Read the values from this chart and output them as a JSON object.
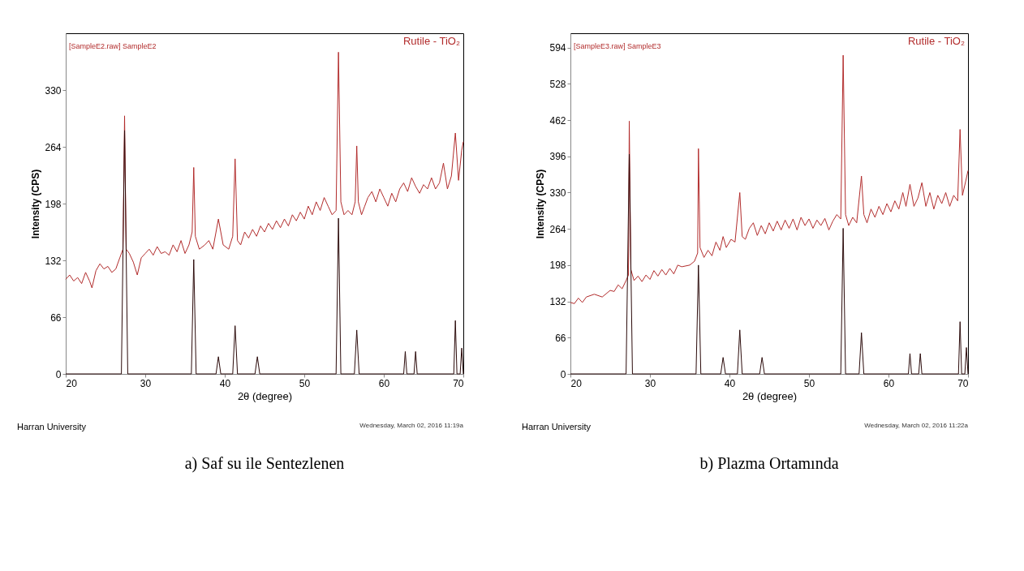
{
  "chart_data": [
    {
      "type": "line",
      "title": "a) Saf su ile Sentezlenen",
      "xlabel": "2θ (degree)",
      "ylabel": "Intensity (CPS)",
      "annotations": [
        "Rutile - TiO₂",
        "Harran University",
        "Wednesday, March 02, 2016 11:19a"
      ],
      "xlim": [
        20,
        70
      ],
      "xticks": [
        20,
        30,
        40,
        50,
        60,
        70
      ],
      "ylim": [
        0,
        396
      ],
      "yticks": [
        0,
        66,
        132,
        198,
        264,
        330
      ],
      "grid": false,
      "series": [
        {
          "name": "[SampleE2.raw] SampleE2",
          "color": "#b22c2c",
          "x": [
            20,
            20.5,
            21,
            21.5,
            22,
            22.5,
            23,
            23.3,
            23.8,
            24.3,
            24.8,
            25.3,
            25.8,
            26.3,
            26.8,
            27.2,
            27.4,
            27.6,
            28,
            28.5,
            29,
            29.5,
            30,
            30.5,
            31,
            31.5,
            32,
            32.5,
            33,
            33.5,
            34,
            34.5,
            35,
            35.5,
            35.9,
            36.1,
            36.3,
            36.8,
            37.5,
            38,
            38.5,
            39.2,
            39.8,
            40.5,
            41,
            41.3,
            41.6,
            42,
            42.5,
            43,
            43.5,
            44,
            44.5,
            45,
            45.5,
            46,
            46.5,
            47,
            47.5,
            48,
            48.5,
            49,
            49.5,
            50,
            50.5,
            51,
            51.5,
            52,
            52.5,
            53,
            53.5,
            54,
            54.3,
            54.6,
            55,
            55.5,
            56,
            56.4,
            56.6,
            56.8,
            57.2,
            57.6,
            58,
            58.5,
            59,
            59.5,
            60,
            60.5,
            61,
            61.5,
            62,
            62.5,
            63,
            63.5,
            64,
            64.5,
            65,
            65.5,
            66,
            66.5,
            67,
            67.5,
            68,
            68.5,
            69,
            69.4,
            69.8,
            70
          ],
          "values": [
            110,
            115,
            108,
            112,
            105,
            118,
            108,
            100,
            120,
            128,
            122,
            125,
            118,
            122,
            135,
            145,
            300,
            145,
            140,
            130,
            115,
            135,
            140,
            145,
            138,
            148,
            140,
            142,
            138,
            150,
            142,
            155,
            140,
            150,
            165,
            240,
            160,
            145,
            150,
            155,
            145,
            180,
            150,
            145,
            160,
            250,
            155,
            150,
            165,
            158,
            168,
            160,
            172,
            165,
            175,
            168,
            178,
            170,
            180,
            172,
            185,
            178,
            188,
            180,
            195,
            185,
            200,
            190,
            205,
            195,
            185,
            190,
            374,
            200,
            185,
            190,
            185,
            200,
            265,
            200,
            185,
            195,
            205,
            212,
            200,
            215,
            205,
            195,
            210,
            200,
            215,
            222,
            212,
            228,
            218,
            210,
            220,
            215,
            228,
            215,
            222,
            245,
            215,
            230,
            280,
            225,
            260,
            270
          ]
        },
        {
          "color": "#2b0a0a",
          "x": [
            20,
            27.0,
            27.4,
            27.8,
            35.8,
            36.1,
            36.4,
            38.9,
            39.2,
            39.5,
            41.0,
            41.3,
            41.6,
            43.8,
            44.1,
            44.4,
            54.0,
            54.3,
            54.6,
            56.3,
            56.6,
            56.9,
            62.5,
            62.7,
            62.9,
            63.8,
            64.0,
            64.2,
            68.8,
            69.0,
            69.2,
            69.4,
            69.6,
            69.8,
            70
          ],
          "values": [
            0,
            0,
            283,
            0,
            0,
            133,
            0,
            0,
            20,
            0,
            0,
            56,
            0,
            0,
            20,
            0,
            0,
            181,
            0,
            0,
            51,
            0,
            0,
            26,
            0,
            0,
            26,
            0,
            0,
            62,
            0,
            0,
            0,
            30,
            0
          ]
        }
      ]
    },
    {
      "type": "line",
      "title": "b) Plazma Ortamında",
      "xlabel": "2θ (degree)",
      "ylabel": "Intensity (CPS)",
      "annotations": [
        "Rutile - TiO₂",
        "Harran University",
        "Wednesday, March 02, 2016 11:22a"
      ],
      "xlim": [
        20,
        70
      ],
      "xticks": [
        20,
        30,
        40,
        50,
        60,
        70
      ],
      "ylim": [
        0,
        620
      ],
      "yticks": [
        0,
        66,
        132,
        198,
        264,
        330,
        396,
        462,
        528,
        594
      ],
      "grid": false,
      "series": [
        {
          "name": "[SampleE3.raw] SampleE3",
          "color": "#b22c2c",
          "x": [
            20,
            20.5,
            21,
            21.5,
            22,
            23,
            24,
            25,
            25.5,
            26,
            26.5,
            27,
            27.3,
            27.4,
            27.6,
            28,
            28.5,
            29,
            29.5,
            30,
            30.5,
            31,
            31.5,
            32,
            32.5,
            33,
            33.5,
            34,
            35,
            35.6,
            36.0,
            36.1,
            36.3,
            36.8,
            37.3,
            37.8,
            38.3,
            38.8,
            39.2,
            39.6,
            40.2,
            40.7,
            41.3,
            41.6,
            42,
            42.5,
            43,
            43.5,
            44,
            44.5,
            45,
            45.5,
            46,
            46.5,
            47,
            47.5,
            48,
            48.5,
            49,
            49.5,
            50,
            50.5,
            51,
            51.5,
            52,
            52.5,
            53,
            53.5,
            54,
            54.3,
            54.6,
            55,
            55.5,
            56,
            56.6,
            56.9,
            57.3,
            57.8,
            58.3,
            58.8,
            59.3,
            59.8,
            60.3,
            60.8,
            61.3,
            61.8,
            62.2,
            62.7,
            63.2,
            63.7,
            64.2,
            64.7,
            65.2,
            65.7,
            66.2,
            66.7,
            67.2,
            67.7,
            68.2,
            68.7,
            69,
            69.3,
            69.7,
            70
          ],
          "values": [
            130,
            128,
            138,
            130,
            140,
            145,
            140,
            152,
            150,
            162,
            155,
            170,
            180,
            460,
            190,
            170,
            178,
            168,
            180,
            172,
            188,
            178,
            190,
            180,
            192,
            182,
            198,
            195,
            198,
            205,
            220,
            410,
            230,
            212,
            225,
            215,
            240,
            225,
            250,
            230,
            245,
            240,
            330,
            250,
            245,
            265,
            275,
            252,
            270,
            255,
            275,
            260,
            278,
            262,
            280,
            265,
            282,
            262,
            285,
            270,
            282,
            265,
            280,
            270,
            283,
            262,
            278,
            290,
            282,
            580,
            290,
            270,
            285,
            275,
            360,
            290,
            275,
            300,
            285,
            305,
            290,
            310,
            295,
            315,
            300,
            330,
            305,
            345,
            305,
            320,
            348,
            305,
            330,
            300,
            325,
            310,
            330,
            305,
            325,
            315,
            445,
            325,
            350,
            370
          ]
        },
        {
          "color": "#2b0a0a",
          "x": [
            20,
            27.0,
            27.4,
            27.8,
            35.8,
            36.1,
            36.4,
            38.9,
            39.2,
            39.5,
            41.0,
            41.3,
            41.6,
            43.8,
            44.1,
            44.4,
            54.0,
            54.3,
            54.6,
            56.3,
            56.6,
            56.9,
            62.5,
            62.7,
            62.9,
            63.8,
            64.0,
            64.2,
            68.8,
            69.0,
            69.2,
            69.4,
            69.6,
            69.8,
            70
          ],
          "values": [
            0,
            0,
            400,
            0,
            0,
            198,
            0,
            0,
            30,
            0,
            0,
            80,
            0,
            0,
            30,
            0,
            0,
            265,
            0,
            0,
            75,
            0,
            0,
            37,
            0,
            0,
            37,
            0,
            0,
            95,
            0,
            0,
            0,
            48,
            0
          ]
        }
      ]
    }
  ]
}
